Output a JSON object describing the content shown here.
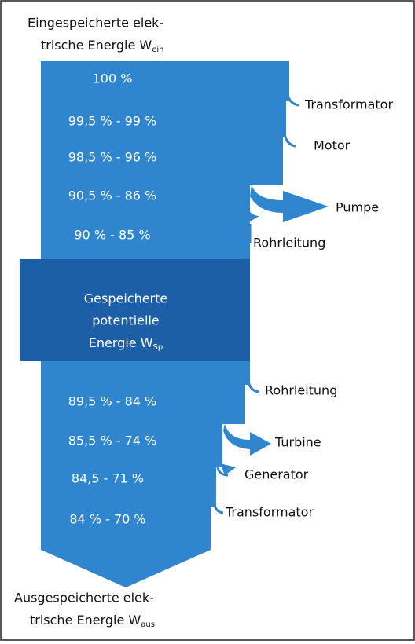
{
  "input": {
    "line1": "Eingespeicherte elek-",
    "line2": "trische Energie W",
    "sub": "ein"
  },
  "storage": {
    "line1": "Gespeicherte",
    "line2": "potentielle",
    "line3": "Energie W",
    "sub": "Sp"
  },
  "output": {
    "line1": "Ausgespeicherte elek-",
    "line2": "trische Energie W",
    "sub": "aus"
  },
  "levels": [
    "100 %",
    "99,5 % - 99 %",
    "98,5 % - 96 %",
    "90,5 % - 86 %",
    "90 % - 85 %",
    "89,5 % - 84 %",
    "85,5 % - 74 %",
    "84,5 - 71 %",
    "84 % - 70 %"
  ],
  "losses": [
    "Transformator",
    "Motor",
    "Pumpe",
    "Rohrleitung",
    "Rohrleitung",
    "Turbine",
    "Generator",
    "Transformator"
  ]
}
